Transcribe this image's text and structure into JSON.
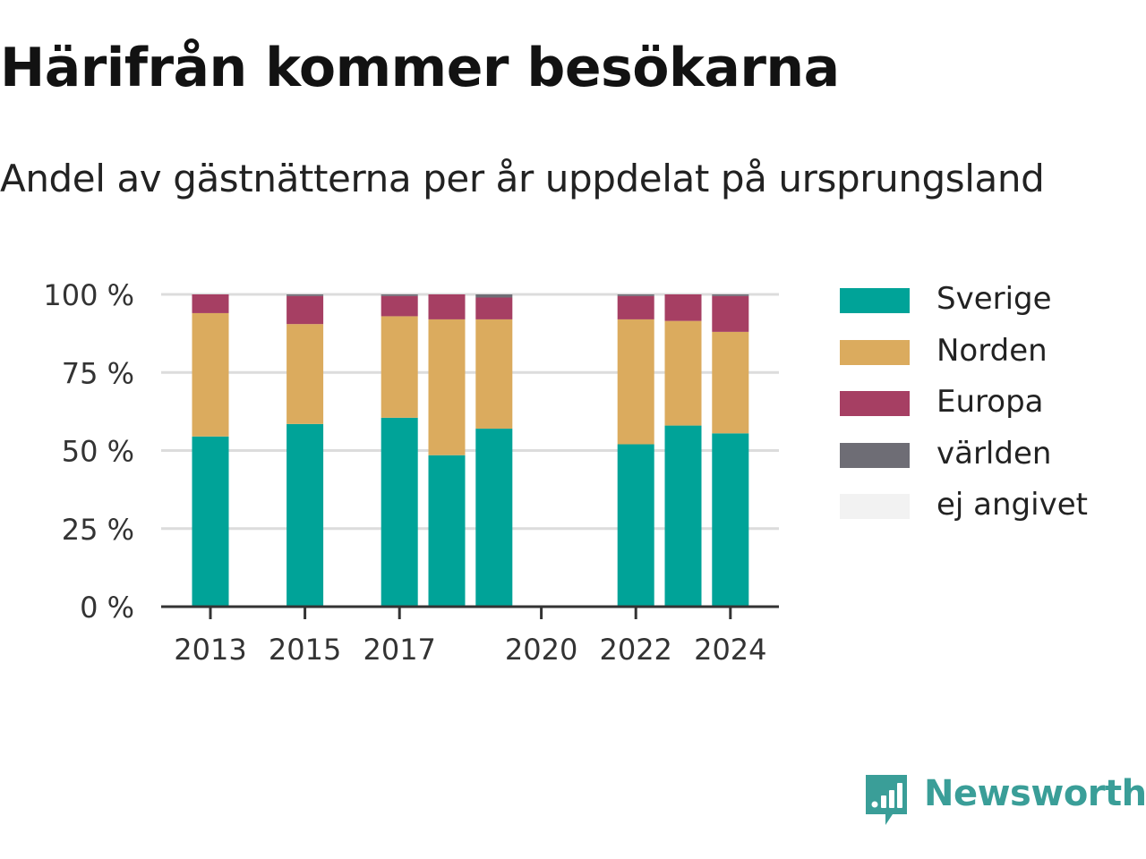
{
  "title": "Härifrån kommer besökarna",
  "subtitle": "Andel av gästnätterna per år uppdelat på ursprungsland",
  "brand": {
    "name": "Newsworthy"
  },
  "chart_data": {
    "type": "bar",
    "stacked": true,
    "years": [
      2013,
      2014,
      2015,
      2016,
      2017,
      2018,
      2019,
      2020,
      2021,
      2022,
      2023,
      2024
    ],
    "x_ticks": [
      2013,
      2015,
      2017,
      2020,
      2022,
      2024
    ],
    "x_tick_labels": [
      "2013",
      "2015",
      "2017",
      "2020",
      "2022",
      "2024"
    ],
    "y_ticks": [
      0,
      25,
      50,
      75,
      100
    ],
    "y_tick_labels": [
      "0 %",
      "25 %",
      "50 %",
      "75 %",
      "100 %"
    ],
    "ylim": [
      0,
      100
    ],
    "grid": true,
    "legend_position": "right",
    "series": [
      {
        "name": "Sverige",
        "color": "#00a398",
        "values": [
          54.5,
          null,
          58.5,
          null,
          60.5,
          48.5,
          57,
          null,
          null,
          52,
          58,
          55.5
        ]
      },
      {
        "name": "Norden",
        "color": "#dbab5e",
        "values": [
          39.5,
          null,
          32,
          null,
          32.5,
          43.5,
          35,
          null,
          null,
          40,
          33.5,
          32.5
        ]
      },
      {
        "name": "Europa",
        "color": "#a63f63",
        "values": [
          6,
          null,
          9,
          null,
          6.5,
          8,
          7,
          null,
          null,
          7.5,
          8.5,
          11.5
        ]
      },
      {
        "name": "världen",
        "color": "#6e6d75",
        "values": [
          0,
          null,
          0.5,
          null,
          0.5,
          0,
          1,
          null,
          null,
          0.5,
          0,
          0.5
        ]
      },
      {
        "name": "ej angivet",
        "color": "#f2f2f2",
        "values": [
          0,
          null,
          0,
          null,
          0,
          0,
          0,
          null,
          null,
          0,
          0,
          0
        ]
      }
    ]
  }
}
